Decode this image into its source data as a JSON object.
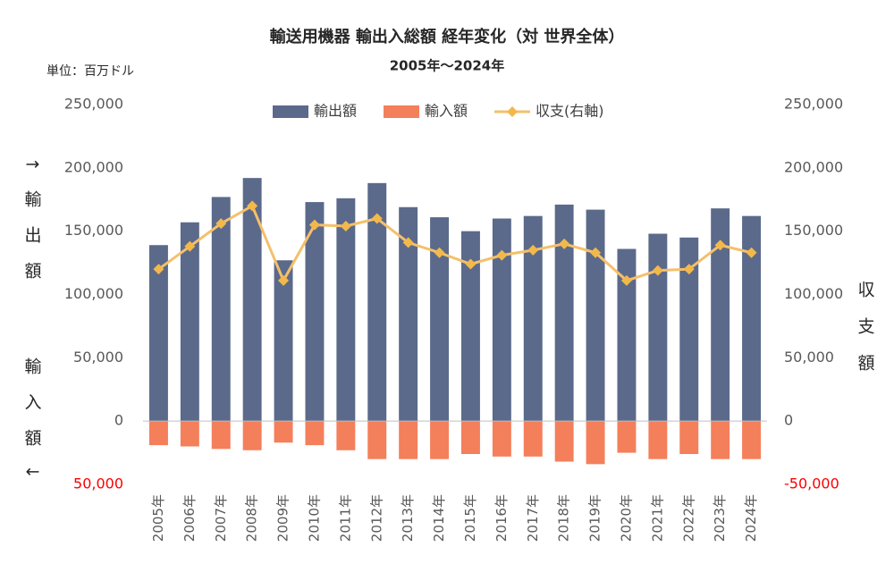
{
  "chart_data": {
    "type": "bar",
    "title": "輸送用機器 輸出入総額 経年変化（対 世界全体）",
    "subtitle": "2005年～2024年",
    "unit_label": "単位：百万ドル",
    "ylabel_export": "↑輸出額",
    "ylabel_import": "輸入額↓",
    "y2label": "収支額",
    "categories": [
      "2005年",
      "2006年",
      "2007年",
      "2008年",
      "2009年",
      "2010年",
      "2011年",
      "2012年",
      "2013年",
      "2014年",
      "2015年",
      "2016年",
      "2017年",
      "2018年",
      "2019年",
      "2020年",
      "2021年",
      "2022年",
      "2023年",
      "2024年"
    ],
    "series": [
      {
        "name": "輸出額",
        "kind": "bar",
        "color": "#5b6a8a",
        "values": [
          139000,
          157000,
          177000,
          192000,
          127000,
          173000,
          176000,
          188000,
          169000,
          161000,
          150000,
          160000,
          162000,
          171000,
          167000,
          136000,
          148000,
          145000,
          168000,
          162000
        ]
      },
      {
        "name": "輸入額",
        "kind": "bar",
        "color": "#f47f5b",
        "values": [
          -19000,
          -20000,
          -22000,
          -23000,
          -17000,
          -19000,
          -23000,
          -30000,
          -30000,
          -30000,
          -26000,
          -28000,
          -28000,
          -32000,
          -34000,
          -25000,
          -30000,
          -26000,
          -30000,
          -30000
        ]
      },
      {
        "name": "収支(右軸)",
        "kind": "line",
        "axis": "y2",
        "color": "#f4c06b",
        "marker_color": "#f2b84b",
        "values": [
          120000,
          138000,
          156000,
          170000,
          111000,
          155000,
          154000,
          160000,
          141000,
          133000,
          124000,
          131000,
          135000,
          140000,
          133000,
          111000,
          119000,
          120000,
          139000,
          133000
        ]
      }
    ],
    "ylim": [
      -50000,
      250000
    ],
    "yticks": [
      {
        "value": -50000,
        "label": "50,000"
      },
      0,
      {
        "value": 50000,
        "label": "50,000"
      },
      {
        "value": 100000,
        "label": "100,000"
      },
      {
        "value": 150000,
        "label": "150,000"
      },
      {
        "value": 200000,
        "label": "200,000"
      },
      {
        "value": 250000,
        "label": "250,000"
      }
    ],
    "y2lim": [
      -50000,
      250000
    ],
    "y2ticks": [
      {
        "value": -50000,
        "label": "-50,000"
      },
      0,
      {
        "value": 50000,
        "label": "50,000"
      },
      {
        "value": 100000,
        "label": "100,000"
      },
      {
        "value": 150000,
        "label": "150,000"
      },
      {
        "value": 200000,
        "label": "200,000"
      },
      {
        "value": 250000,
        "label": "250,000"
      }
    ],
    "negative_tick_color": "#ff0000",
    "grid": false,
    "legend": "top"
  }
}
